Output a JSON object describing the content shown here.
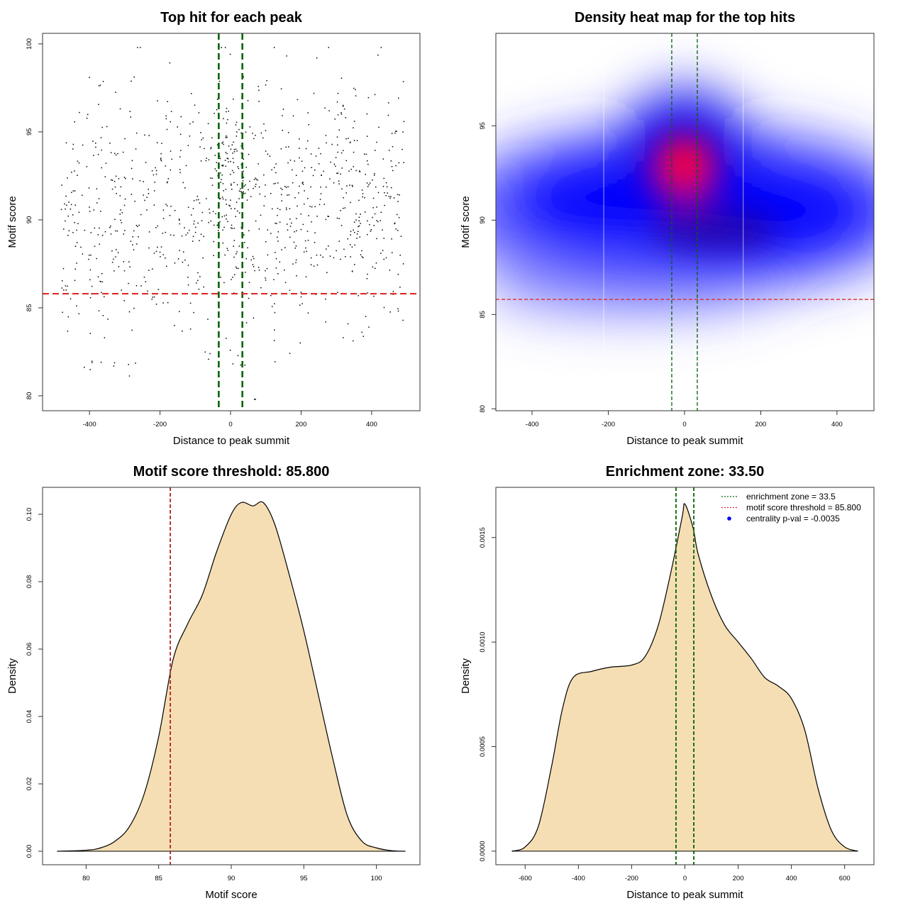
{
  "colors": {
    "fill": "#F5DEB3",
    "green": "#006400",
    "red": "#E02A2A",
    "blue": "#0000FF",
    "hot": "#FF0000"
  },
  "chart_data": [
    {
      "type": "scatter",
      "title": "Top hit for each peak",
      "xlabel": "Distance to peak summit",
      "ylabel": "Motif score",
      "xlim": [
        -533,
        537
      ],
      "ylim": [
        79.15,
        100.6
      ],
      "xticks": [
        -400,
        -200,
        0,
        200,
        400
      ],
      "yticks": [
        80,
        85,
        90,
        95,
        100
      ],
      "vlines": [
        -33.5,
        33.5
      ],
      "hline": 85.8,
      "points_generator": {
        "n": 1000,
        "n_center": 90,
        "seed": 7,
        "x_range": [
          -480,
          495
        ],
        "y_mean": 90.5,
        "y_sd": 3.6,
        "y_range": [
          79.8,
          99.8
        ],
        "center_x_range": [
          -40,
          40
        ],
        "center_y_mean": 93,
        "center_y_sd": 2.2
      }
    },
    {
      "type": "heatmap",
      "title": "Density heat map for the top hits",
      "xlabel": "Distance to peak summit",
      "ylabel": "Motif score",
      "xlim": [
        -495,
        497
      ],
      "ylim": [
        79.9,
        99.9
      ],
      "xticks": [
        -400,
        -200,
        0,
        200,
        400
      ],
      "yticks": [
        80,
        85,
        90,
        95
      ],
      "vlines": [
        -33.5,
        33.5
      ],
      "hline": 85.8,
      "hotspot": {
        "x": 0,
        "y": 93
      },
      "tile_edges": [
        -212,
        154
      ]
    },
    {
      "type": "area",
      "title": "Motif score threshold: 85.800",
      "xlabel": "Motif score",
      "ylabel": "Density",
      "xlim": [
        77,
        103
      ],
      "ylim": [
        -0.004,
        0.108
      ],
      "xticks": [
        80,
        85,
        90,
        95,
        100
      ],
      "yticks": [
        0,
        0.02,
        0.04,
        0.06,
        0.08,
        0.1
      ],
      "ytick_labels": [
        "0.00",
        "0.02",
        "0.04",
        "0.06",
        "0.08",
        "0.10"
      ],
      "vlines": [
        85.8
      ],
      "x": [
        78,
        80,
        81,
        82,
        83,
        84,
        85,
        86,
        87,
        88,
        89,
        90,
        90.7,
        91.5,
        92.2,
        93,
        94,
        95,
        96,
        97,
        98,
        99,
        100,
        101,
        102
      ],
      "y": [
        0,
        0.0003,
        0.001,
        0.003,
        0.0074,
        0.017,
        0.034,
        0.057,
        0.0675,
        0.076,
        0.089,
        0.1,
        0.1035,
        0.1025,
        0.1035,
        0.097,
        0.082,
        0.0654,
        0.0464,
        0.0274,
        0.0105,
        0.003,
        0.001,
        0.0002,
        0
      ]
    },
    {
      "type": "area",
      "title": "Enrichment zone: 33.50",
      "xlabel": "Distance to peak summit",
      "ylabel": "Density",
      "xlim": [
        -710,
        710
      ],
      "ylim": [
        -6.5e-05,
        0.00174
      ],
      "xticks": [
        -600,
        -400,
        -200,
        0,
        200,
        400,
        600
      ],
      "yticks": [
        0,
        0.0005,
        0.001,
        0.0015
      ],
      "ytick_labels": [
        "0.0000",
        "0.0005",
        "0.0010",
        "0.0015"
      ],
      "vlines": [
        -33.5,
        33.5
      ],
      "x": [
        -650,
        -600,
        -550,
        -500,
        -460,
        -420,
        -350,
        -280,
        -200,
        -150,
        -100,
        -50,
        -10,
        0,
        30,
        50,
        100,
        150,
        200,
        250,
        300,
        350,
        400,
        450,
        500,
        550,
        600,
        650
      ],
      "y": [
        0,
        2e-05,
        0.00012,
        0.00041,
        0.00068,
        0.00083,
        0.00086,
        0.00088,
        0.00089,
        0.00093,
        0.00108,
        0.00135,
        0.0016,
        0.00166,
        0.00155,
        0.00142,
        0.00122,
        0.00108,
        0.001,
        0.00092,
        0.00083,
        0.00079,
        0.00073,
        0.00058,
        0.0003,
        0.0001,
        2e-05,
        0
      ],
      "legend": [
        {
          "label": "enrichment zone = 33.5",
          "style": "dotted-green"
        },
        {
          "label": "motif score threshold = 85.800",
          "style": "dotted-red"
        },
        {
          "label": "centrality p-val = -0.0035",
          "style": "blue-dot"
        }
      ]
    }
  ]
}
